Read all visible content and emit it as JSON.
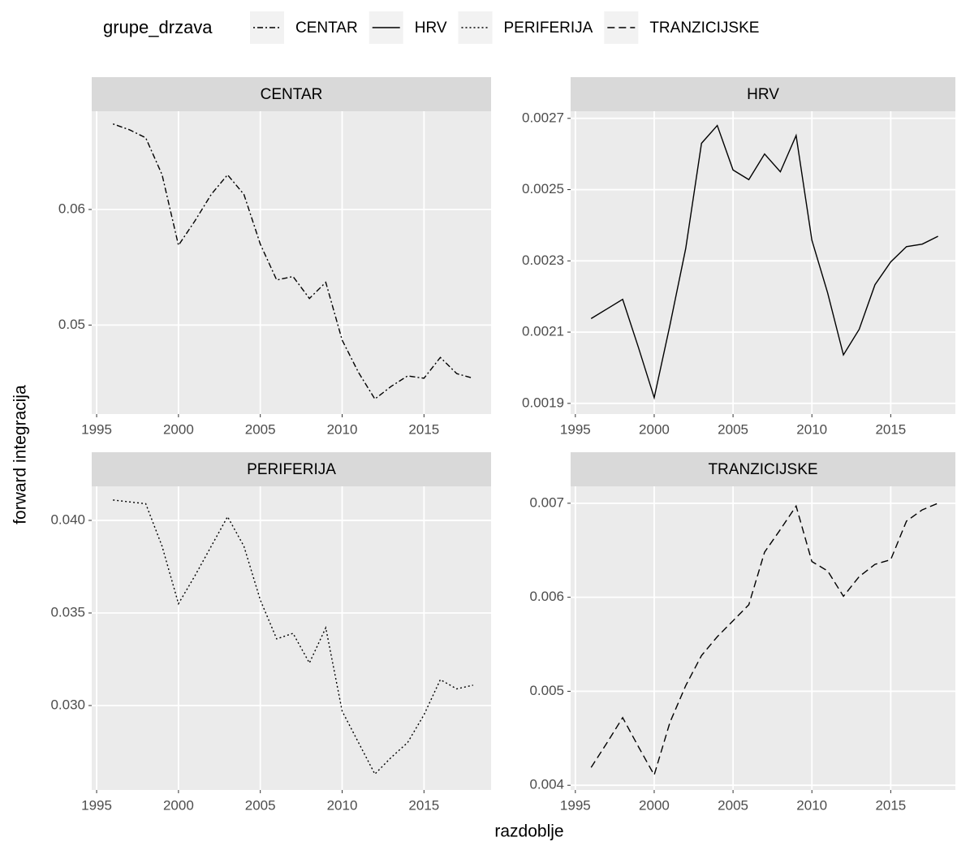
{
  "legend_title": "grupe_drzava",
  "xlabel": "razdoblje",
  "ylabel": "forward integracija",
  "chart_data": [
    {
      "type": "line",
      "title": "CENTAR",
      "x": [
        1996,
        1997,
        1998,
        1999,
        2000,
        2001,
        2002,
        2003,
        2004,
        2005,
        2006,
        2007,
        2008,
        2009,
        2010,
        2011,
        2012,
        2013,
        2014,
        2015,
        2016,
        2017,
        2018
      ],
      "series": [
        {
          "name": "CENTAR",
          "color": "#000000",
          "linetype": "dotdash",
          "values": [
            0.0674,
            0.0669,
            0.0662,
            0.063,
            0.0569,
            0.059,
            0.0613,
            0.063,
            0.0613,
            0.057,
            0.0539,
            0.0542,
            0.0523,
            0.0537,
            0.0487,
            0.0459,
            0.0436,
            0.0447,
            0.0456,
            0.0454,
            0.0472,
            0.0458,
            0.0454
          ]
        }
      ],
      "xlim": [
        1994.7,
        2019.1
      ],
      "xticks": [
        1995,
        2000,
        2005,
        2010,
        2015
      ],
      "ylim": [
        0.0423,
        0.0685
      ],
      "yticks": [
        0.05,
        0.06
      ],
      "grid": true
    },
    {
      "type": "line",
      "title": "HRV",
      "x": [
        1996,
        1997,
        1998,
        1999,
        2000,
        2001,
        2002,
        2003,
        2004,
        2005,
        2006,
        2007,
        2008,
        2009,
        2010,
        2011,
        2012,
        2013,
        2014,
        2015,
        2016,
        2017,
        2018
      ],
      "series": [
        {
          "name": "HRV",
          "color": "#000000",
          "linetype": "solid",
          "values": [
            0.002138,
            0.002165,
            0.002192,
            0.002057,
            0.001916,
            0.00212,
            0.002335,
            0.00263,
            0.00268,
            0.002555,
            0.002528,
            0.0026,
            0.00255,
            0.002652,
            0.002358,
            0.00221,
            0.002036,
            0.002108,
            0.002233,
            0.002297,
            0.00234,
            0.002347,
            0.002369
          ]
        }
      ],
      "xlim": [
        1994.7,
        2019.1
      ],
      "xticks": [
        1995,
        2000,
        2005,
        2010,
        2015
      ],
      "ylim": [
        0.00187,
        0.00272
      ],
      "yticks": [
        0.0019,
        0.0021,
        0.0023,
        0.0025,
        0.0027
      ],
      "grid": true
    },
    {
      "type": "line",
      "title": "PERIFERIJA",
      "x": [
        1996,
        1997,
        1998,
        1999,
        2000,
        2001,
        2002,
        2003,
        2004,
        2005,
        2006,
        2007,
        2008,
        2009,
        2010,
        2011,
        2012,
        2013,
        2014,
        2015,
        2016,
        2017,
        2018
      ],
      "series": [
        {
          "name": "PERIFERIJA",
          "color": "#000000",
          "linetype": "dotted",
          "values": [
            0.0411,
            0.041,
            0.0409,
            0.0386,
            0.0355,
            0.037,
            0.0386,
            0.0402,
            0.0386,
            0.0357,
            0.0336,
            0.0339,
            0.0323,
            0.0342,
            0.0297,
            0.028,
            0.0263,
            0.0272,
            0.028,
            0.0295,
            0.0314,
            0.0309,
            0.0311
          ]
        }
      ],
      "xlim": [
        1994.7,
        2019.1
      ],
      "xticks": [
        1995,
        2000,
        2005,
        2010,
        2015
      ],
      "ylim": [
        0.02544,
        0.04184
      ],
      "yticks": [
        {
          "value": 0.03,
          "label": "0.030"
        },
        0.035,
        {
          "value": 0.04,
          "label": "0.040"
        }
      ],
      "grid": true
    },
    {
      "type": "line",
      "title": "TRANZICIJSKE",
      "x": [
        1996,
        1997,
        1998,
        1999,
        2000,
        2001,
        2002,
        2003,
        2004,
        2005,
        2006,
        2007,
        2008,
        2009,
        2010,
        2011,
        2012,
        2013,
        2014,
        2015,
        2016,
        2017,
        2018
      ],
      "series": [
        {
          "name": "TRANZICIJSKE",
          "color": "#000000",
          "linetype": "dashed",
          "values": [
            0.00419,
            0.00445,
            0.00472,
            0.00441,
            0.00411,
            0.00467,
            0.00506,
            0.00538,
            0.00558,
            0.00575,
            0.00592,
            0.00648,
            0.00672,
            0.00697,
            0.00638,
            0.00628,
            0.00601,
            0.00622,
            0.00635,
            0.0064,
            0.00681,
            0.00693,
            0.007
          ]
        }
      ],
      "xlim": [
        1994.7,
        2019.1
      ],
      "xticks": [
        1995,
        2000,
        2005,
        2010,
        2015
      ],
      "ylim": [
        0.00395,
        0.00718
      ],
      "yticks": [
        0.004,
        0.005,
        0.006,
        0.007
      ],
      "grid": true
    }
  ]
}
